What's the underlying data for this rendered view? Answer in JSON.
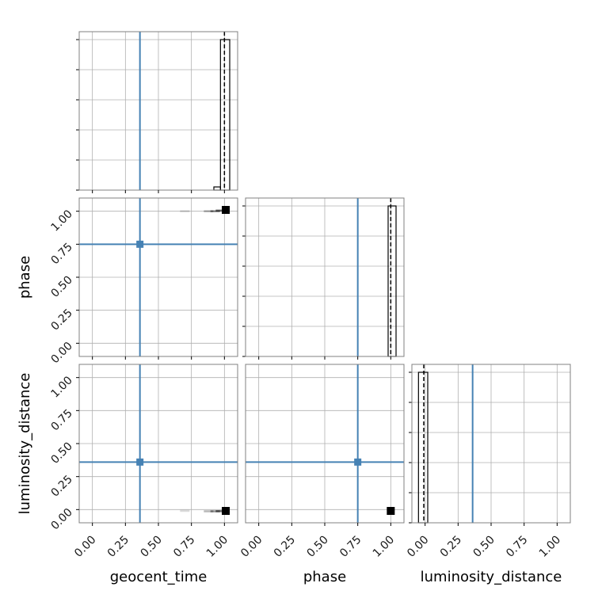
{
  "chart_data": {
    "type": "corner",
    "title": "",
    "parameters": [
      "geocent_time",
      "phase",
      "luminosity_distance"
    ],
    "range": [
      -0.1,
      1.1
    ],
    "ticks": [
      0.0,
      0.25,
      0.5,
      0.75,
      1.0
    ],
    "tick_labels": [
      "0.00",
      "0.25",
      "0.50",
      "0.75",
      "1.00"
    ],
    "truths": [
      0.36,
      0.75,
      0.36
    ],
    "truth_color": "#4682b4",
    "sample_color": "#000000",
    "grid": true,
    "histograms": [
      {
        "parameter": "geocent_time",
        "bins": [
          [
            0.92,
            0.97,
            0.02
          ],
          [
            0.97,
            1.04,
            0.95
          ]
        ],
        "median": 1.0
      },
      {
        "parameter": "phase",
        "bins": [
          [
            0.98,
            1.04,
            0.95
          ]
        ],
        "median": 1.0
      },
      {
        "parameter": "luminosity_distance",
        "bins": [
          [
            -0.05,
            0.02,
            0.95
          ]
        ],
        "median": -0.01
      }
    ],
    "scatter": [
      {
        "x": "geocent_time",
        "y": "phase",
        "points": [
          [
            1.01,
            1.01
          ],
          [
            0.97,
            1.005
          ],
          [
            0.93,
            1.0
          ],
          [
            0.88,
            1.0
          ],
          [
            0.7,
            1.0
          ]
        ]
      },
      {
        "x": "geocent_time",
        "y": "luminosity_distance",
        "points": [
          [
            1.01,
            -0.01
          ],
          [
            0.97,
            -0.012
          ],
          [
            0.93,
            -0.013
          ],
          [
            0.88,
            -0.013
          ],
          [
            0.7,
            -0.01
          ]
        ]
      },
      {
        "x": "phase",
        "y": "luminosity_distance",
        "points": [
          [
            1.0,
            -0.01
          ]
        ]
      }
    ]
  }
}
